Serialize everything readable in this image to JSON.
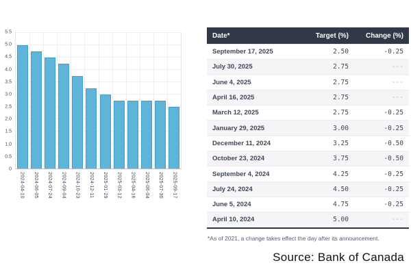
{
  "chart_data": {
    "type": "bar",
    "categories": [
      "2024-04-10",
      "2024-06-05",
      "2024-07-24",
      "2024-09-04",
      "2024-10-23",
      "2024-12-11",
      "2025-01-29",
      "2025-03-12",
      "2025-04-16",
      "2025-06-04",
      "2025-07-30",
      "2025-09-17"
    ],
    "values": [
      5.0,
      4.75,
      4.5,
      4.25,
      3.75,
      3.25,
      3.0,
      2.75,
      2.75,
      2.75,
      2.75,
      2.5
    ],
    "title": "",
    "xlabel": "",
    "ylabel": "",
    "ylim": [
      0,
      5.5
    ],
    "ytick_step": 0.5,
    "ytick_labels": [
      "0",
      "0.5",
      "1.0",
      "1.5",
      "2.0",
      "2.5",
      "3.0",
      "3.5",
      "4.0",
      "4.5",
      "5.0",
      "5.5"
    ],
    "grid": true,
    "legend": "none"
  },
  "table": {
    "columns": [
      "Date*",
      "Target (%)",
      "Change (%)"
    ],
    "rows": [
      {
        "date": "September 17, 2025",
        "target": "2.50",
        "change": "-0.25"
      },
      {
        "date": "July 30, 2025",
        "target": "2.75",
        "change": "---"
      },
      {
        "date": "June 4, 2025",
        "target": "2.75",
        "change": "---"
      },
      {
        "date": "April 16, 2025",
        "target": "2.75",
        "change": "---"
      },
      {
        "date": "March 12, 2025",
        "target": "2.75",
        "change": "-0.25"
      },
      {
        "date": "January 29, 2025",
        "target": "3.00",
        "change": "-0.25"
      },
      {
        "date": "December 11, 2024",
        "target": "3.25",
        "change": "-0.50"
      },
      {
        "date": "October 23, 2024",
        "target": "3.75",
        "change": "-0.50"
      },
      {
        "date": "September 4, 2024",
        "target": "4.25",
        "change": "-0.25"
      },
      {
        "date": "July 24, 2024",
        "target": "4.50",
        "change": "-0.25"
      },
      {
        "date": "June 5, 2024",
        "target": "4.75",
        "change": "-0.25"
      },
      {
        "date": "April 10, 2024",
        "target": "5.00",
        "change": "---"
      }
    ],
    "footnote": "*As of 2021, a change takes effect the day after its announcement."
  },
  "source": "Source: Bank of Canada",
  "colors": {
    "bar_fill": "#5fb4d9",
    "bar_border": "#3f9ecb",
    "header_bg": "#313947",
    "header_text": "#ffffff",
    "row_alt_bg": "#f5f5f7",
    "date_text": "#3d4659",
    "number_text": "#3f4654",
    "muted_dash": "#b5b8bf",
    "footnote_text": "#555e6e",
    "source_text": "#111111"
  }
}
